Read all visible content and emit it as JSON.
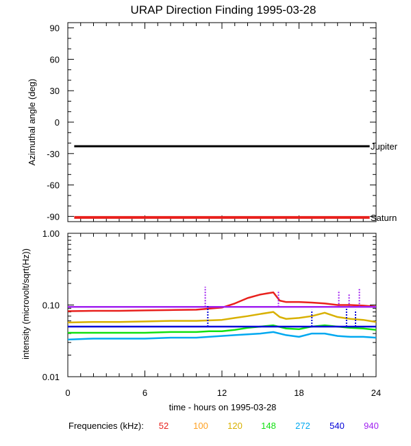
{
  "title": "URAP Direction Finding  1995-03-28",
  "chart_data": [
    {
      "type": "line",
      "name": "azimuth-panel",
      "ylabel": "Azimuthal angle (deg)",
      "ylim": [
        -95,
        95
      ],
      "xlim": [
        0,
        24
      ],
      "yticks": [
        90,
        60,
        30,
        0,
        -30,
        -60,
        -90
      ],
      "yticklabels": [
        "90",
        "60",
        "30",
        "0",
        "-30",
        "-60",
        "-90"
      ],
      "series": [
        {
          "name": "Jupiter",
          "color": "#000000",
          "x": [
            0.5,
            23.5
          ],
          "values": [
            -23,
            -23
          ]
        },
        {
          "name": "Saturn",
          "color": "#e8201c",
          "x": [
            0.5,
            23.5
          ],
          "values": [
            -91,
            -91
          ]
        }
      ]
    },
    {
      "type": "line",
      "name": "intensity-panel",
      "ylabel": "intensity (microvolt/sqrt(Hz))",
      "yscale": "log",
      "ylim": [
        0.01,
        1.0
      ],
      "xlim": [
        0,
        24
      ],
      "yticks": [
        1.0,
        0.1,
        0.01
      ],
      "yticklabels": [
        "1.00",
        "0.10",
        "0.01"
      ],
      "xticks": [
        0,
        6,
        12,
        18,
        24
      ],
      "xticklabels": [
        "0",
        "6",
        "12",
        "18",
        "24"
      ],
      "xlabel": "time - hours on 1995-03-28",
      "series": [
        {
          "name": "52",
          "color": "#e8201c",
          "x": [
            0,
            2,
            4,
            6,
            8,
            10,
            12,
            13,
            14,
            15,
            15.5,
            16,
            16.5,
            17,
            18,
            19,
            20,
            21,
            22,
            23,
            24
          ],
          "values": [
            0.082,
            0.083,
            0.083,
            0.084,
            0.085,
            0.086,
            0.092,
            0.105,
            0.125,
            0.14,
            0.145,
            0.15,
            0.115,
            0.11,
            0.11,
            0.108,
            0.105,
            0.1,
            0.1,
            0.098,
            0.095
          ]
        },
        {
          "name": "100",
          "color": "#ffa020",
          "x": [
            0,
            24
          ],
          "values": [
            0.085,
            0.085
          ]
        },
        {
          "name": "120",
          "color": "#d8b000",
          "x": [
            0,
            2,
            4,
            6,
            8,
            10,
            12,
            13,
            14,
            15,
            16,
            16.5,
            17,
            18,
            19,
            20,
            21,
            22,
            23,
            24
          ],
          "values": [
            0.057,
            0.058,
            0.058,
            0.059,
            0.06,
            0.06,
            0.062,
            0.066,
            0.07,
            0.075,
            0.08,
            0.068,
            0.064,
            0.066,
            0.07,
            0.078,
            0.068,
            0.064,
            0.062,
            0.058
          ]
        },
        {
          "name": "148",
          "color": "#10e010",
          "x": [
            0,
            2,
            4,
            6,
            8,
            10,
            11,
            12,
            13,
            14,
            15,
            16,
            17,
            18,
            19,
            20,
            21,
            22,
            23,
            24
          ],
          "values": [
            0.041,
            0.041,
            0.041,
            0.041,
            0.042,
            0.042,
            0.043,
            0.043,
            0.045,
            0.048,
            0.05,
            0.052,
            0.047,
            0.046,
            0.05,
            0.052,
            0.05,
            0.048,
            0.047,
            0.045
          ]
        },
        {
          "name": "272",
          "color": "#00a8f0",
          "x": [
            0,
            2,
            4,
            6,
            8,
            10,
            11,
            12,
            13,
            14,
            15,
            16,
            17,
            18,
            19,
            20,
            21,
            22,
            23,
            24
          ],
          "values": [
            0.033,
            0.034,
            0.034,
            0.034,
            0.035,
            0.035,
            0.036,
            0.037,
            0.038,
            0.039,
            0.04,
            0.042,
            0.038,
            0.036,
            0.04,
            0.04,
            0.037,
            0.036,
            0.036,
            0.035
          ]
        },
        {
          "name": "540",
          "color": "#0000d8",
          "x": [
            0,
            2,
            4,
            6,
            8,
            10,
            12,
            14,
            16,
            18,
            20,
            22,
            24
          ],
          "values": [
            0.05,
            0.05,
            0.05,
            0.05,
            0.05,
            0.05,
            0.05,
            0.05,
            0.05,
            0.05,
            0.05,
            0.05,
            0.05
          ]
        },
        {
          "name": "940",
          "color": "#a020f0",
          "x": [
            0,
            2,
            4,
            6,
            8,
            10,
            12,
            14,
            16,
            18,
            20,
            22,
            24
          ],
          "values": [
            0.094,
            0.094,
            0.094,
            0.094,
            0.094,
            0.094,
            0.094,
            0.094,
            0.094,
            0.094,
            0.094,
            0.094,
            0.094
          ]
        }
      ],
      "spikes": [
        {
          "series": "940",
          "x": 10.7,
          "values": [
            0.094,
            0.18
          ]
        },
        {
          "series": "540",
          "x": 10.9,
          "values": [
            0.05,
            0.1
          ]
        },
        {
          "series": "940",
          "x": 16.4,
          "values": [
            0.094,
            0.16
          ]
        },
        {
          "series": "540",
          "x": 19.0,
          "values": [
            0.05,
            0.085
          ]
        },
        {
          "series": "940",
          "x": 21.1,
          "values": [
            0.094,
            0.16
          ]
        },
        {
          "series": "540",
          "x": 21.7,
          "values": [
            0.05,
            0.09
          ]
        },
        {
          "series": "940",
          "x": 21.9,
          "values": [
            0.094,
            0.14
          ]
        },
        {
          "series": "540",
          "x": 22.4,
          "values": [
            0.05,
            0.085
          ]
        },
        {
          "series": "940",
          "x": 22.7,
          "values": [
            0.094,
            0.17
          ]
        }
      ]
    }
  ],
  "legend": {
    "label": "Frequencies (kHz):",
    "items": [
      {
        "text": "52",
        "color": "#e8201c"
      },
      {
        "text": "100",
        "color": "#ffa020"
      },
      {
        "text": "120",
        "color": "#d8b000"
      },
      {
        "text": "148",
        "color": "#10e010"
      },
      {
        "text": "272",
        "color": "#00a8f0"
      },
      {
        "text": "540",
        "color": "#0000d8"
      },
      {
        "text": "940",
        "color": "#a020f0"
      }
    ]
  }
}
